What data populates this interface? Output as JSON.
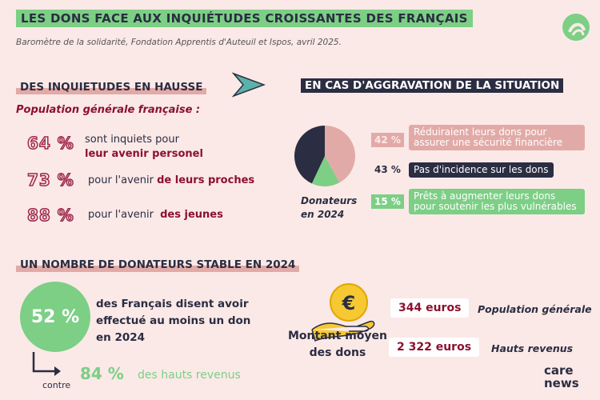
{
  "header": {
    "title": "LES DONS FACE AUX INQUIÉTUDES CROISSANTES DES FRANÇAIS",
    "subtitle": "Baromètre de la solidarité, Fondation Apprentis d'Auteuil et Ispos, avril 2025."
  },
  "left_section": {
    "heading": "DES INQUIETUDES EN HAUSSE",
    "population_label": "Population générale française :",
    "items": [
      {
        "pct": "64 %",
        "text_line1": "sont inquiets pour",
        "text_bold": "leur avenir personel"
      },
      {
        "pct": "73 %",
        "text_plain": "pour l'avenir",
        "text_bold": "de leurs proches"
      },
      {
        "pct": "88 %",
        "text_plain": "pour l'avenir",
        "text_bold": "des jeunes"
      }
    ]
  },
  "right_section": {
    "heading": "EN CAS D'AGGRAVATION DE LA SITUATION",
    "pie_label_line1": "Donateurs",
    "pie_label_line2": "en 2024",
    "items": [
      {
        "pct": "42 %",
        "text": "Réduiraient leurs dons pour assurer une sécurité financière",
        "color": "#e2aaa7"
      },
      {
        "pct": "43 %",
        "text": "Pas d'incidence sur les dons",
        "color": "#2b2d42"
      },
      {
        "pct": "15 %",
        "text": "Prêts à augmenter leurs dons pour soutenir les plus vulnérables",
        "color": "#7ccf85"
      }
    ]
  },
  "chart_data": {
    "type": "pie",
    "categories": [
      "Réduiraient leurs dons",
      "Pas d'incidence sur les dons",
      "Prêts à augmenter leurs dons"
    ],
    "values": [
      42,
      43,
      15
    ],
    "colors": [
      "#e2aaa7",
      "#2b2d42",
      "#7ccf85"
    ]
  },
  "bottom_section": {
    "heading": "UN NOMBRE DE DONATEURS STABLE EN 2024",
    "big_pct": "52 %",
    "big_text": "des Français disent avoir effectué au moins un don en 2024",
    "contre": "contre",
    "sub_pct": "84 %",
    "sub_text": "des hauts revenus"
  },
  "amounts": {
    "label_line1": "Montant moyen",
    "label_line2": "des dons",
    "rows": [
      {
        "value": "344 euros",
        "label": "Population générale"
      },
      {
        "value": "2 322 euros",
        "label": "Hauts revenus"
      }
    ]
  },
  "brand": {
    "line1": "care",
    "line2": "news"
  },
  "colors": {
    "navy": "#2b2d42",
    "green": "#7ccf85",
    "pink": "#e2aaa7",
    "red": "#8c1030",
    "bg": "#fbe9e7"
  }
}
